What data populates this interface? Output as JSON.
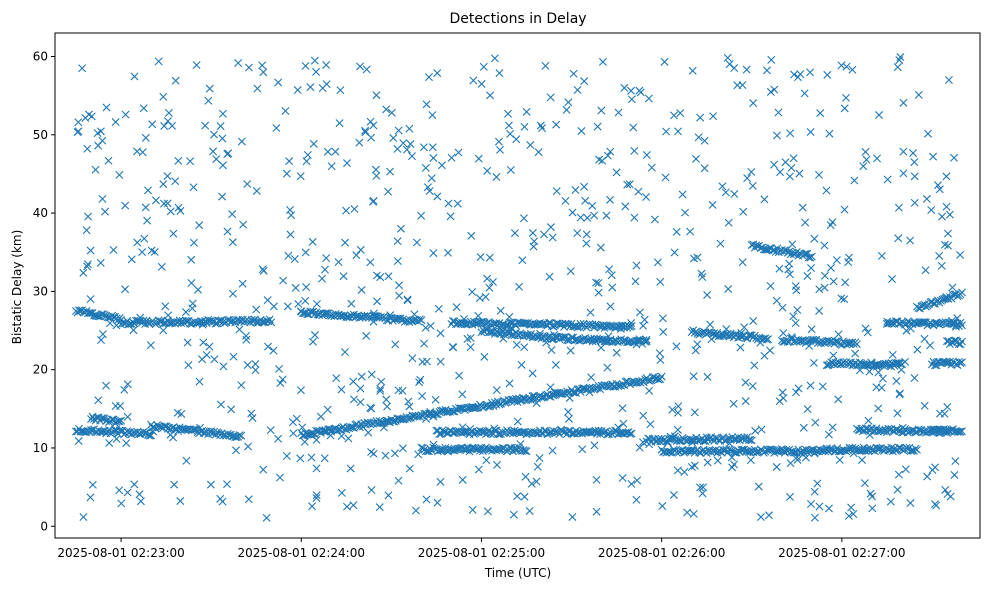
{
  "chart_data": {
    "type": "scatter",
    "title": "Detections in Delay",
    "xlabel": "Time (UTC)",
    "ylabel": "Bistatic Delay (km)",
    "x_unit": "time",
    "xlim": [
      "2025-08-01 02:22:38",
      "2025-08-01 02:27:46"
    ],
    "ylim": [
      -1.5,
      63
    ],
    "x_ticks": [
      "2025-08-01 02:23:00",
      "2025-08-01 02:24:00",
      "2025-08-01 02:25:00",
      "2025-08-01 02:26:00",
      "2025-08-01 02:27:00"
    ],
    "y_ticks": [
      0,
      10,
      20,
      30,
      40,
      50,
      60
    ],
    "marker": "x",
    "color": "#1f77b4",
    "grid": false,
    "series": [
      {
        "name": "",
        "tracks": [
          {
            "start": [
              "2025-08-01 02:22:45",
              27.5
            ],
            "end": [
              "2025-08-01 02:23:00",
              26.5
            ],
            "step_s": 0.5
          },
          {
            "start": [
              "2025-08-01 02:23:00",
              26.0
            ],
            "end": [
              "2025-08-01 02:23:50",
              26.2
            ],
            "step_s": 0.5
          },
          {
            "start": [
              "2025-08-01 02:22:45",
              12.3
            ],
            "end": [
              "2025-08-01 02:23:10",
              11.8
            ],
            "step_s": 0.5
          },
          {
            "start": [
              "2025-08-01 02:22:50",
              13.8
            ],
            "end": [
              "2025-08-01 02:23:00",
              13.3
            ],
            "step_s": 0.5
          },
          {
            "start": [
              "2025-08-01 02:23:10",
              12.8
            ],
            "end": [
              "2025-08-01 02:23:40",
              11.5
            ],
            "step_s": 0.5
          },
          {
            "start": [
              "2025-08-01 02:24:00",
              11.7
            ],
            "end": [
              "2025-08-01 02:26:00",
              19.0
            ],
            "step_s": 0.5
          },
          {
            "start": [
              "2025-08-01 02:24:00",
              27.3
            ],
            "end": [
              "2025-08-01 02:24:40",
              26.2
            ],
            "step_s": 0.5
          },
          {
            "start": [
              "2025-08-01 02:24:50",
              26.0
            ],
            "end": [
              "2025-08-01 02:25:50",
              25.5
            ],
            "step_s": 0.5
          },
          {
            "start": [
              "2025-08-01 02:25:00",
              25.0
            ],
            "end": [
              "2025-08-01 02:25:25",
              24.0
            ],
            "step_s": 0.5
          },
          {
            "start": [
              "2025-08-01 02:25:25",
              24.0
            ],
            "end": [
              "2025-08-01 02:25:55",
              23.5
            ],
            "step_s": 0.5
          },
          {
            "start": [
              "2025-08-01 02:24:45",
              12.0
            ],
            "end": [
              "2025-08-01 02:25:50",
              12.0
            ],
            "step_s": 0.5
          },
          {
            "start": [
              "2025-08-01 02:24:40",
              9.8
            ],
            "end": [
              "2025-08-01 02:25:15",
              9.8
            ],
            "step_s": 0.5
          },
          {
            "start": [
              "2025-08-01 02:25:55",
              11.0
            ],
            "end": [
              "2025-08-01 02:26:30",
              11.2
            ],
            "step_s": 0.5
          },
          {
            "start": [
              "2025-08-01 02:26:00",
              9.6
            ],
            "end": [
              "2025-08-01 02:26:55",
              9.6
            ],
            "step_s": 0.5
          },
          {
            "start": [
              "2025-08-01 02:26:10",
              24.8
            ],
            "end": [
              "2025-08-01 02:26:35",
              24.0
            ],
            "step_s": 0.5
          },
          {
            "start": [
              "2025-08-01 02:26:30",
              35.8
            ],
            "end": [
              "2025-08-01 02:26:50",
              34.5
            ],
            "step_s": 0.5
          },
          {
            "start": [
              "2025-08-01 02:26:40",
              23.8
            ],
            "end": [
              "2025-08-01 02:27:05",
              23.3
            ],
            "step_s": 0.5
          },
          {
            "start": [
              "2025-08-01 02:26:55",
              20.8
            ],
            "end": [
              "2025-08-01 02:27:20",
              20.7
            ],
            "step_s": 0.5
          },
          {
            "start": [
              "2025-08-01 02:26:55",
              9.8
            ],
            "end": [
              "2025-08-01 02:27:25",
              9.8
            ],
            "step_s": 0.5
          },
          {
            "start": [
              "2025-08-01 02:27:05",
              12.3
            ],
            "end": [
              "2025-08-01 02:27:35",
              12.1
            ],
            "step_s": 0.5
          },
          {
            "start": [
              "2025-08-01 02:27:15",
              26.0
            ],
            "end": [
              "2025-08-01 02:27:40",
              25.8
            ],
            "step_s": 0.5
          },
          {
            "start": [
              "2025-08-01 02:27:25",
              27.8
            ],
            "end": [
              "2025-08-01 02:27:40",
              29.8
            ],
            "step_s": 0.5
          },
          {
            "start": [
              "2025-08-01 02:27:30",
              20.8
            ],
            "end": [
              "2025-08-01 02:27:40",
              20.8
            ],
            "step_s": 0.5
          },
          {
            "start": [
              "2025-08-01 02:27:35",
              23.5
            ],
            "end": [
              "2025-08-01 02:27:40",
              23.5
            ],
            "step_s": 0.5
          },
          {
            "start": [
              "2025-08-01 02:27:30",
              12.2
            ],
            "end": [
              "2025-08-01 02:27:40",
              12.2
            ],
            "step_s": 0.5
          }
        ],
        "clutter_points_approx": 900,
        "clutter_range": {
          "x": [
            "2025-08-01 02:22:45",
            "2025-08-01 02:27:40"
          ],
          "y": [
            1,
            60
          ]
        }
      }
    ]
  }
}
